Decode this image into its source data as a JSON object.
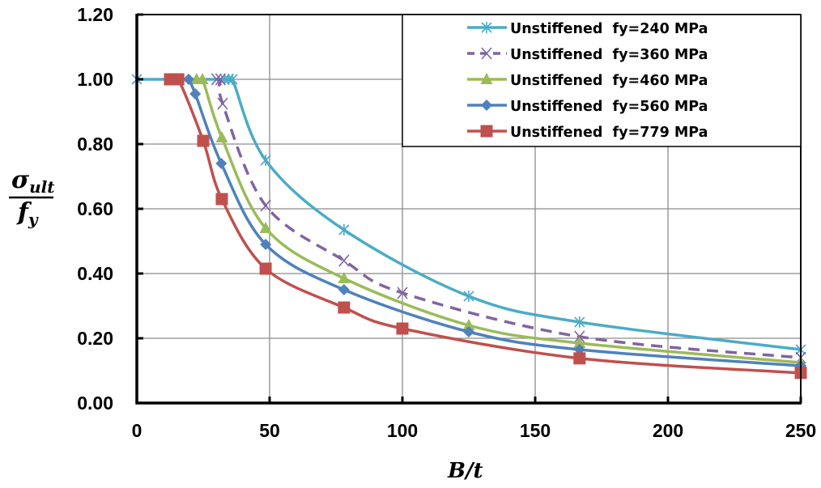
{
  "chart_data": {
    "type": "line",
    "title": "",
    "xlabel": "B/t",
    "ylabel": {
      "numerator": "σ",
      "numerator_sub": "ult",
      "denominator": "f",
      "denominator_sub": "y"
    },
    "xlim": [
      0,
      250
    ],
    "ylim": [
      0,
      1.2
    ],
    "xticks": [
      0,
      50,
      100,
      150,
      200,
      250
    ],
    "xtick_labels": [
      "0",
      "50",
      "100",
      "150",
      "200",
      "250"
    ],
    "yticks": [
      0,
      0.2,
      0.4,
      0.6,
      0.8,
      1.0,
      1.2
    ],
    "ytick_labels": [
      "0.00",
      "0.20",
      "0.40",
      "0.60",
      "0.80",
      "1.00",
      "1.20"
    ],
    "grid": true,
    "legend_position": "top-right",
    "smooth": true,
    "series": [
      {
        "name": "Unstiffened  fy=240 MPa",
        "color": "#4BACC6",
        "marker": "asterisk",
        "dashed": false,
        "x": [
          0,
          33,
          34.5,
          36,
          48.5,
          78,
          125,
          166.7,
          250
        ],
        "y": [
          1.0,
          1.0,
          1.0,
          1.0,
          0.75,
          0.535,
          0.33,
          0.25,
          0.165
        ]
      },
      {
        "name": "Unstiffened  fy=360 MPa",
        "color": "#8064A2",
        "marker": "x",
        "dashed": true,
        "x": [
          30,
          31.5,
          32.3,
          48.5,
          78,
          100,
          166.7,
          250
        ],
        "y": [
          1.0,
          1.0,
          0.925,
          0.61,
          0.44,
          0.34,
          0.205,
          0.14
        ]
      },
      {
        "name": "Unstiffened  fy=460 MPa",
        "color": "#9BBB59",
        "marker": "triangle",
        "dashed": false,
        "x": [
          22.5,
          24.7,
          32,
          48.5,
          78,
          125,
          166.7,
          250
        ],
        "y": [
          1.0,
          1.0,
          0.82,
          0.54,
          0.385,
          0.24,
          0.185,
          0.125
        ]
      },
      {
        "name": "Unstiffened  fy=560 MPa",
        "color": "#4F81BD",
        "marker": "diamond",
        "dashed": false,
        "x": [
          19.5,
          22,
          31.8,
          48.5,
          78,
          125,
          166.7,
          250
        ],
        "y": [
          1.0,
          0.955,
          0.74,
          0.49,
          0.35,
          0.22,
          0.165,
          0.115
        ]
      },
      {
        "name": "Unstiffened  fy=779 MPa",
        "color": "#C0504D",
        "marker": "square",
        "dashed": false,
        "x": [
          12.5,
          15.6,
          25,
          32,
          48.5,
          78,
          100,
          166.7,
          250
        ],
        "y": [
          1.0,
          1.0,
          0.81,
          0.63,
          0.415,
          0.295,
          0.23,
          0.138,
          0.093
        ]
      }
    ]
  }
}
